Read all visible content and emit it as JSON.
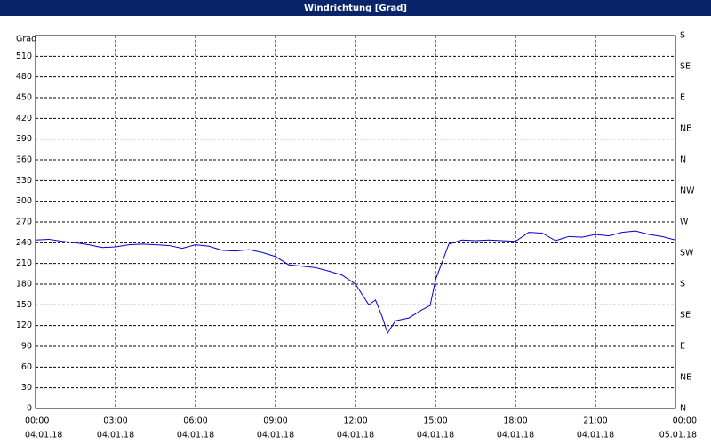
{
  "chart_data": {
    "type": "line",
    "title": "Windrichtung [Grad]",
    "y_label": "Grad",
    "x": [
      0,
      0.5,
      1,
      1.5,
      2,
      2.5,
      3,
      3.5,
      4,
      4.5,
      5,
      5.5,
      6,
      6.5,
      7,
      7.5,
      8,
      8.5,
      9,
      9.5,
      10,
      10.5,
      11,
      11.5,
      12,
      12.5,
      12.75,
      13,
      13.2,
      13.5,
      14,
      14.5,
      14.8,
      15,
      15.5,
      16,
      16.5,
      17,
      17.5,
      18,
      18.5,
      19,
      19.5,
      20,
      20.5,
      21,
      21.5,
      22,
      22.5,
      23,
      23.5,
      24
    ],
    "series": [
      {
        "color": "#0000cc",
        "values": [
          244,
          245,
          242,
          240,
          237,
          233,
          234,
          237,
          238,
          237,
          236,
          232,
          237,
          235,
          229,
          228,
          230,
          226,
          220,
          208,
          206,
          204,
          199,
          193,
          180,
          150,
          157,
          133,
          109,
          127,
          131,
          143,
          149,
          186,
          238,
          244,
          243,
          244,
          243,
          242,
          255,
          254,
          243,
          249,
          248,
          252,
          250,
          255,
          257,
          252,
          249,
          244
        ]
      }
    ],
    "xlim": [
      0,
      24
    ],
    "xticks": [
      {
        "value": 0,
        "label": "00:00"
      },
      {
        "value": 3,
        "label": "03:00"
      },
      {
        "value": 6,
        "label": "06:00"
      },
      {
        "value": 9,
        "label": "09:00"
      },
      {
        "value": 12,
        "label": "12:00"
      },
      {
        "value": 15,
        "label": "15:00"
      },
      {
        "value": 18,
        "label": "18:00"
      },
      {
        "value": 21,
        "label": "21:00"
      },
      {
        "value": 24,
        "label": "00:00"
      }
    ],
    "xtick_dates": [
      "04.01.18",
      "04.01.18",
      "04.01.18",
      "04.01.18",
      "04.01.18",
      "04.01.18",
      "04.01.18",
      "04.01.18",
      "05.01.18"
    ],
    "ylim": [
      0,
      540
    ],
    "yticks": [
      0,
      30,
      60,
      90,
      120,
      150,
      180,
      210,
      240,
      270,
      300,
      330,
      360,
      390,
      420,
      450,
      480,
      510
    ],
    "y2lim": [
      0,
      540
    ],
    "y2ticks": [
      {
        "value": 0,
        "label": "N"
      },
      {
        "value": 45,
        "label": "NE"
      },
      {
        "value": 90,
        "label": "E"
      },
      {
        "value": 135,
        "label": "SE"
      },
      {
        "value": 180,
        "label": "S"
      },
      {
        "value": 225,
        "label": "SW"
      },
      {
        "value": 270,
        "label": "W"
      },
      {
        "value": 315,
        "label": "NW"
      },
      {
        "value": 360,
        "label": "N"
      },
      {
        "value": 405,
        "label": "NE"
      },
      {
        "value": 450,
        "label": "E"
      },
      {
        "value": 495,
        "label": "SE"
      },
      {
        "value": 540,
        "label": "S"
      }
    ],
    "grid": true
  }
}
